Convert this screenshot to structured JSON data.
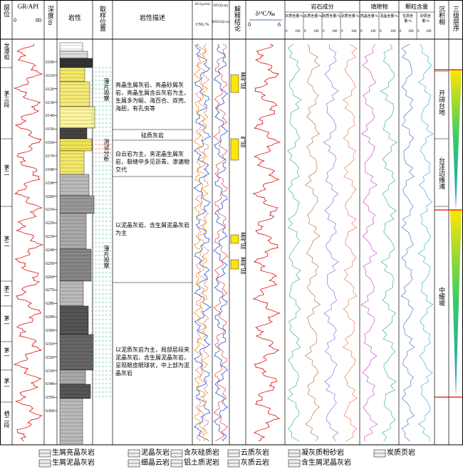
{
  "header": {
    "layer": "层位",
    "gr": "GR/API",
    "gr_min": "0",
    "gr_max": "80",
    "depth": "深度/m",
    "lithology": "岩性",
    "sampling": "取样位置",
    "description": "岩性描述",
    "ac": "AC/(μs/m)",
    "cnl": "CNL/%",
    "rt": "RT/(Ω·m)",
    "rxo": "RXO/(Ω·m)",
    "interpretation": "解释结论",
    "carbon": "δ¹³C/‰",
    "carbon_min": "0",
    "carbon_max": "6",
    "rock": "岩石成分",
    "fill": "填隙物",
    "grain": "颗粒含量",
    "facies": "沉积相",
    "sequence": "三级层序",
    "scale_min": "0",
    "scale_max": "100",
    "sub": [
      "灰质含量/%",
      "云质含量/%",
      "硅质含量/%",
      "泥质含量/%",
      "亮晶含量/%",
      "泥晶含量/%",
      "生屑含量/%",
      "砂屑含量/%"
    ]
  },
  "depth": {
    "ticks": [
      6100,
      6110,
      6120,
      6130,
      6140,
      6150,
      6160,
      6170,
      6180,
      6190,
      6200,
      6210,
      6220,
      6230,
      6240,
      6250,
      6260,
      6270,
      6280,
      6290,
      6300,
      6310,
      6320,
      6330,
      6340,
      6350,
      6360
    ]
  },
  "strata": [
    "龙潭组",
    "茅三段",
    "茅二",
    "茅二",
    "茅二",
    "茅一",
    "茅一",
    "茅一",
    "栖二段"
  ],
  "sampling": [
    "薄片观察",
    "测试分析",
    "薄片观察"
  ],
  "descriptions": [
    "亮晶生屑灰岩、亮晶砂屑灰岩，亮晶生屑含云灰岩为主，生屑多为蜓、海百合、双壳、海胆，有孔虫等",
    "硅质灰岩",
    "白云岩为主，夹泥晶生屑灰岩，裂缝中多见沥青、渗漉物交代",
    "以泥晶灰岩、含生屑泥晶灰岩为主",
    "以泥质灰岩为主，局部层段夹泥晶灰岩、含生屑泥晶灰岩，呈现眼皮眼球状，中上部为泥晶灰岩"
  ],
  "interpretation": [
    "差气层",
    "气层",
    "差气层",
    "差气层"
  ],
  "facies": [
    "开阔台地",
    "台洼边缘滩",
    "中缓坡"
  ],
  "legend": [
    "生屑亮晶灰岩",
    "生屑泥晶灰岩",
    "泥晶灰岩",
    "细晶云岩",
    "含灰硅质岩",
    "铝土质泥岩",
    "云质灰岩",
    "灰质云岩",
    "凝灰质粉砂岩",
    "含生屑泥晶灰岩",
    "炭质页岩"
  ]
}
